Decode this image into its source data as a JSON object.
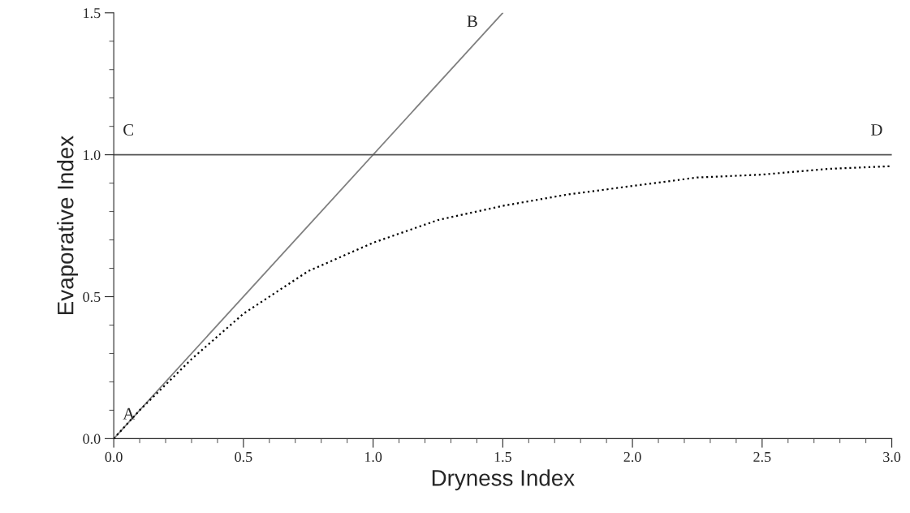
{
  "chart_data": {
    "type": "line",
    "xlabel": "Dryness Index",
    "ylabel": "Evaporative Index",
    "xlim": [
      0,
      3
    ],
    "ylim": [
      0,
      1.5
    ],
    "xticks": [
      {
        "value": 0,
        "label": "0.0"
      },
      {
        "value": 0.5,
        "label": "0.5"
      },
      {
        "value": 1,
        "label": "1.0"
      },
      {
        "value": 1.5,
        "label": "1.5"
      },
      {
        "value": 2,
        "label": "2.0"
      },
      {
        "value": 2.5,
        "label": "2.5"
      },
      {
        "value": 3,
        "label": "3.0"
      }
    ],
    "yticks": [
      {
        "value": 0,
        "label": "0.0"
      },
      {
        "value": 0.5,
        "label": "0.5"
      },
      {
        "value": 1,
        "label": "1.0"
      },
      {
        "value": 1.5,
        "label": "1.5"
      }
    ],
    "grid": false,
    "legend": false,
    "marker": "none",
    "series": [
      {
        "color": "#808080",
        "line_style": "solid",
        "x": [
          0,
          1.5
        ],
        "values": [
          0,
          1.5
        ]
      },
      {
        "color": "#555555",
        "line_style": "solid",
        "x": [
          0,
          3
        ],
        "values": [
          1,
          1
        ]
      },
      {
        "color": "#000000",
        "line_style": "dotted",
        "x": [
          0,
          0.1,
          0.2,
          0.3,
          0.5,
          0.75,
          1,
          1.25,
          1.5,
          1.75,
          2,
          2.25,
          2.5,
          2.75,
          3
        ],
        "values": [
          0,
          0.1,
          0.19,
          0.28,
          0.44,
          0.59,
          0.69,
          0.77,
          0.82,
          0.86,
          0.89,
          0.92,
          0.93,
          0.95,
          0.96
        ]
      }
    ],
    "annotations": [
      {
        "text": "A",
        "x": 0,
        "y": 0
      },
      {
        "text": "B",
        "x": 1.5,
        "y": 1.5
      },
      {
        "text": "C",
        "x": 0,
        "y": 1
      },
      {
        "text": "D",
        "x": 3,
        "y": 1
      }
    ]
  }
}
